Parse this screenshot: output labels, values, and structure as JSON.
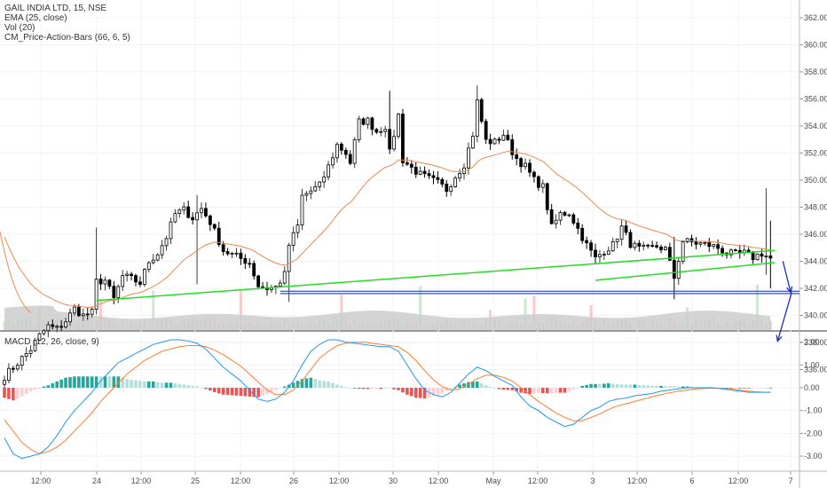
{
  "legend": {
    "symbol_line": "GAIL INDIA LTD, 15, NSE",
    "ema_line": "EMA (25, close)",
    "vol_line": "Vol (20)",
    "cm_line": "CM_Price-Action-Bars (66, 6, 5)",
    "macd_line": "MACD (12, 26, close, 9)"
  },
  "colors": {
    "up": "#26a69a",
    "down": "#000000",
    "ema": "#f2874b",
    "trend_green": "#22dd22",
    "support_blue": "#3f51b5",
    "arrow": "#1b2cc0",
    "macd": "#2196f3",
    "signal": "#ff7b2e",
    "hist_pos_strong": "#26a69a",
    "hist_pos_weak": "#b2dfdb",
    "hist_neg_strong": "#ef5350",
    "hist_neg_weak": "#ffcdd2",
    "volume_area": "#cccccc"
  },
  "chart_data": [
    {
      "type": "candlestick",
      "title": "GAIL INDIA LTD, 15, NSE",
      "y_ticks": [
        "362.00",
        "360.00",
        "358.00",
        "356.00",
        "354.00",
        "352.00",
        "350.00",
        "348.00",
        "346.00",
        "344.00",
        "342.00",
        "340.00",
        "338.00",
        "336.00"
      ],
      "ylim": [
        334.5,
        363
      ],
      "x_ticks": [
        "12:00",
        "24",
        "12:00",
        "25",
        "12:00",
        "26",
        "12:00",
        "30",
        "12:00",
        "May",
        "12:00",
        "3",
        "12:00",
        "6",
        "12:00",
        "7"
      ],
      "ohlc_close_path": [
        [
          0,
          335.5
        ],
        [
          3,
          336.5
        ],
        [
          6,
          337.5
        ],
        [
          8,
          338.5
        ],
        [
          10,
          339.2
        ],
        [
          12,
          339.0
        ],
        [
          14,
          339.6
        ],
        [
          16,
          340.5
        ],
        [
          18,
          340.0
        ],
        [
          20,
          340.2
        ],
        [
          21,
          342.5
        ],
        [
          23,
          342.6
        ],
        [
          25,
          341.2
        ],
        [
          27,
          342.9
        ],
        [
          29,
          342.7
        ],
        [
          31,
          342.4
        ],
        [
          33,
          344.0
        ],
        [
          35,
          344.6
        ],
        [
          37,
          345.8
        ],
        [
          39,
          347.5
        ],
        [
          41,
          347.8
        ],
        [
          43,
          347.2
        ],
        [
          45,
          347.9
        ],
        [
          47,
          346.9
        ],
        [
          49,
          345.5
        ],
        [
          50,
          344.8
        ],
        [
          52,
          344.5
        ],
        [
          54,
          344.2
        ],
        [
          56,
          343.9
        ],
        [
          58,
          342.2
        ],
        [
          60,
          342.0
        ],
        [
          62,
          342.1
        ],
        [
          64,
          343.0
        ],
        [
          65,
          345.2
        ],
        [
          67,
          346.6
        ],
        [
          68,
          348.8
        ],
        [
          70,
          349.2
        ],
        [
          72,
          349.6
        ],
        [
          74,
          351.0
        ],
        [
          76,
          352.6
        ],
        [
          78,
          352.0
        ],
        [
          79,
          351.3
        ],
        [
          81,
          354.3
        ],
        [
          83,
          354.4
        ],
        [
          85,
          353.6
        ],
        [
          87,
          354.0
        ],
        [
          88,
          352.0
        ],
        [
          90,
          354.8
        ],
        [
          91,
          351.5
        ],
        [
          93,
          350.9
        ],
        [
          95,
          350.4
        ],
        [
          97,
          350.1
        ],
        [
          99,
          349.8
        ],
        [
          101,
          349.3
        ],
        [
          103,
          350.3
        ],
        [
          105,
          351.2
        ],
        [
          107,
          353.4
        ],
        [
          108,
          355.8
        ],
        [
          110,
          352.9
        ],
        [
          112,
          352.8
        ],
        [
          114,
          353.4
        ],
        [
          116,
          352.1
        ],
        [
          117,
          351.6
        ],
        [
          119,
          351.0
        ],
        [
          121,
          350.0
        ],
        [
          123,
          349.5
        ],
        [
          125,
          346.5
        ],
        [
          127,
          347.5
        ],
        [
          129,
          347.6
        ],
        [
          131,
          346.4
        ],
        [
          133,
          345.2
        ],
        [
          135,
          344.2
        ],
        [
          137,
          344.8
        ],
        [
          139,
          345.2
        ],
        [
          141,
          346.5
        ],
        [
          143,
          345.3
        ],
        [
          145,
          344.9
        ],
        [
          147,
          344.9
        ],
        [
          149,
          345.1
        ],
        [
          151,
          344.9
        ],
        [
          153,
          342.8
        ],
        [
          155,
          345.5
        ],
        [
          157,
          345.4
        ],
        [
          159,
          345.3
        ],
        [
          161,
          345.2
        ],
        [
          163,
          345.0
        ],
        [
          165,
          344.6
        ],
        [
          167,
          344.5
        ],
        [
          169,
          344.6
        ],
        [
          171,
          344.3
        ],
        [
          173,
          344.6
        ],
        [
          175,
          344.2
        ]
      ],
      "ema": {
        "name": "EMA (25, close)"
      },
      "trendlines": [
        {
          "from": [
            21,
            341.1
          ],
          "to": [
            176,
            344.8
          ]
        },
        {
          "from": [
            135,
            342.6
          ],
          "to": [
            176,
            343.9
          ]
        }
      ],
      "support": {
        "y": 341.7,
        "from_bar": 63,
        "to_bar": 181
      },
      "arrows": [
        {
          "from": [
            175,
            344.0
          ],
          "to": [
            178,
            341.7
          ]
        },
        {
          "from": [
            177,
            341.7
          ],
          "to": [
            175,
            338.1
          ]
        }
      ]
    },
    {
      "type": "macd",
      "title": "MACD (12, 26, close, 9)",
      "y_ticks": [
        "2.00",
        "1.00",
        "0.00",
        "-1.00",
        "-2.00",
        "-3.00"
      ],
      "ylim": [
        -3.55,
        2.4
      ],
      "macd": [
        [
          0,
          -2.2
        ],
        [
          2,
          -2.9
        ],
        [
          4,
          -3.1
        ],
        [
          6,
          -3.0
        ],
        [
          8,
          -2.9
        ],
        [
          10,
          -2.6
        ],
        [
          12,
          -2.1
        ],
        [
          14,
          -1.5
        ],
        [
          16,
          -1.0
        ],
        [
          18,
          -0.6
        ],
        [
          20,
          -0.2
        ],
        [
          22,
          0.3
        ],
        [
          24,
          0.7
        ],
        [
          26,
          1.1
        ],
        [
          28,
          1.3
        ],
        [
          30,
          1.5
        ],
        [
          32,
          1.7
        ],
        [
          34,
          1.9
        ],
        [
          36,
          2.0
        ],
        [
          38,
          2.1
        ],
        [
          40,
          2.1
        ],
        [
          42,
          2.05
        ],
        [
          44,
          1.95
        ],
        [
          46,
          1.7
        ],
        [
          48,
          1.3
        ],
        [
          50,
          0.9
        ],
        [
          52,
          0.6
        ],
        [
          54,
          0.3
        ],
        [
          56,
          -0.1
        ],
        [
          58,
          -0.5
        ],
        [
          60,
          -0.6
        ],
        [
          62,
          -0.5
        ],
        [
          64,
          -0.2
        ],
        [
          66,
          0.3
        ],
        [
          68,
          1.0
        ],
        [
          70,
          1.6
        ],
        [
          72,
          1.9
        ],
        [
          74,
          2.1
        ],
        [
          76,
          2.1
        ],
        [
          78,
          2.0
        ],
        [
          80,
          1.95
        ],
        [
          82,
          1.9
        ],
        [
          84,
          1.85
        ],
        [
          86,
          1.8
        ],
        [
          88,
          1.8
        ],
        [
          90,
          1.6
        ],
        [
          92,
          1.0
        ],
        [
          94,
          0.4
        ],
        [
          96,
          -0.1
        ],
        [
          98,
          -0.3
        ],
        [
          100,
          -0.4
        ],
        [
          102,
          -0.2
        ],
        [
          104,
          0.2
        ],
        [
          106,
          0.6
        ],
        [
          108,
          0.9
        ],
        [
          110,
          0.75
        ],
        [
          112,
          0.5
        ],
        [
          114,
          0.3
        ],
        [
          116,
          0.1
        ],
        [
          118,
          -0.4
        ],
        [
          120,
          -0.8
        ],
        [
          122,
          -1.0
        ],
        [
          124,
          -1.3
        ],
        [
          126,
          -1.5
        ],
        [
          128,
          -1.7
        ],
        [
          130,
          -1.6
        ],
        [
          132,
          -1.3
        ],
        [
          134,
          -1.0
        ],
        [
          136,
          -0.85
        ],
        [
          138,
          -0.6
        ],
        [
          140,
          -0.5
        ],
        [
          142,
          -0.45
        ],
        [
          144,
          -0.35
        ],
        [
          146,
          -0.3
        ],
        [
          148,
          -0.25
        ],
        [
          150,
          -0.15
        ],
        [
          152,
          -0.1
        ],
        [
          154,
          -0.05
        ],
        [
          156,
          0.0
        ],
        [
          158,
          0.0
        ],
        [
          160,
          0.0
        ],
        [
          162,
          0.0
        ],
        [
          164,
          -0.05
        ],
        [
          166,
          -0.1
        ],
        [
          168,
          -0.15
        ],
        [
          170,
          -0.2
        ],
        [
          172,
          -0.2
        ],
        [
          174,
          -0.2
        ]
      ],
      "signal": [
        [
          0,
          -1.4
        ],
        [
          2,
          -1.9
        ],
        [
          4,
          -2.4
        ],
        [
          6,
          -2.7
        ],
        [
          8,
          -2.9
        ],
        [
          10,
          -2.8
        ],
        [
          12,
          -2.6
        ],
        [
          14,
          -2.3
        ],
        [
          16,
          -1.9
        ],
        [
          18,
          -1.5
        ],
        [
          20,
          -1.1
        ],
        [
          22,
          -0.6
        ],
        [
          24,
          -0.2
        ],
        [
          26,
          0.2
        ],
        [
          28,
          0.6
        ],
        [
          30,
          0.9
        ],
        [
          32,
          1.2
        ],
        [
          34,
          1.4
        ],
        [
          36,
          1.6
        ],
        [
          38,
          1.7
        ],
        [
          40,
          1.8
        ],
        [
          42,
          1.85
        ],
        [
          44,
          1.85
        ],
        [
          46,
          1.8
        ],
        [
          48,
          1.65
        ],
        [
          50,
          1.45
        ],
        [
          52,
          1.2
        ],
        [
          54,
          0.95
        ],
        [
          56,
          0.6
        ],
        [
          58,
          0.25
        ],
        [
          60,
          -0.1
        ],
        [
          62,
          -0.3
        ],
        [
          64,
          -0.3
        ],
        [
          66,
          -0.1
        ],
        [
          68,
          0.3
        ],
        [
          70,
          0.8
        ],
        [
          72,
          1.3
        ],
        [
          74,
          1.6
        ],
        [
          76,
          1.85
        ],
        [
          78,
          1.95
        ],
        [
          80,
          2.0
        ],
        [
          82,
          2.0
        ],
        [
          84,
          1.95
        ],
        [
          86,
          1.9
        ],
        [
          88,
          1.85
        ],
        [
          90,
          1.8
        ],
        [
          92,
          1.55
        ],
        [
          94,
          1.2
        ],
        [
          96,
          0.75
        ],
        [
          98,
          0.35
        ],
        [
          100,
          0.05
        ],
        [
          102,
          -0.1
        ],
        [
          104,
          -0.05
        ],
        [
          106,
          0.15
        ],
        [
          108,
          0.4
        ],
        [
          110,
          0.55
        ],
        [
          112,
          0.55
        ],
        [
          114,
          0.45
        ],
        [
          116,
          0.3
        ],
        [
          118,
          0.0
        ],
        [
          120,
          -0.3
        ],
        [
          122,
          -0.6
        ],
        [
          124,
          -0.85
        ],
        [
          126,
          -1.1
        ],
        [
          128,
          -1.3
        ],
        [
          130,
          -1.45
        ],
        [
          132,
          -1.45
        ],
        [
          134,
          -1.3
        ],
        [
          136,
          -1.15
        ],
        [
          138,
          -0.95
        ],
        [
          140,
          -0.8
        ],
        [
          142,
          -0.7
        ],
        [
          144,
          -0.6
        ],
        [
          146,
          -0.5
        ],
        [
          148,
          -0.4
        ],
        [
          150,
          -0.3
        ],
        [
          152,
          -0.22
        ],
        [
          154,
          -0.15
        ],
        [
          156,
          -0.1
        ],
        [
          158,
          -0.05
        ],
        [
          160,
          -0.03
        ],
        [
          162,
          -0.02
        ],
        [
          164,
          -0.03
        ],
        [
          166,
          -0.05
        ],
        [
          168,
          -0.1
        ],
        [
          170,
          -0.15
        ],
        [
          172,
          -0.18
        ],
        [
          174,
          -0.2
        ]
      ]
    }
  ]
}
